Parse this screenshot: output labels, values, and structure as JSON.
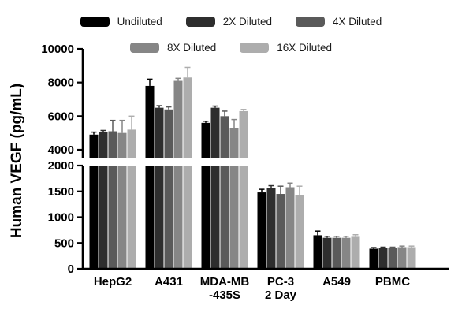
{
  "chart_data": {
    "type": "bar",
    "title": "",
    "xlabel": "",
    "ylabel": "Human VEGF (pg/mL)",
    "grid": false,
    "legend_position": "top",
    "axis_break": true,
    "ylim_lower": [
      0,
      2000
    ],
    "ylim_upper": [
      4000,
      10000
    ],
    "lower_ticks": [
      0,
      500,
      1000,
      1500,
      2000
    ],
    "upper_ticks": [
      4000,
      6000,
      8000,
      10000
    ],
    "categories": [
      "HepG2",
      "A431",
      "MDA-MB\n-435S",
      "PC-3\n2 Day",
      "A549",
      "PBMC"
    ],
    "series": [
      {
        "name": "Undiluted",
        "color": "#000000",
        "values": [
          4900,
          7800,
          5600,
          1480,
          650,
          390
        ],
        "errors": [
          150,
          400,
          100,
          60,
          80,
          20
        ]
      },
      {
        "name": "2X Diluted",
        "color": "#2e2e2e",
        "values": [
          5050,
          6500,
          6500,
          1570,
          600,
          400
        ],
        "errors": [
          100,
          120,
          100,
          40,
          30,
          20
        ]
      },
      {
        "name": "4X Diluted",
        "color": "#5a5a5a",
        "values": [
          5100,
          6400,
          6000,
          1450,
          600,
          400
        ],
        "errors": [
          650,
          150,
          300,
          150,
          30,
          20
        ]
      },
      {
        "name": "8X Diluted",
        "color": "#868686",
        "values": [
          5000,
          8100,
          5300,
          1580,
          600,
          420
        ],
        "errors": [
          750,
          150,
          500,
          80,
          30,
          20
        ]
      },
      {
        "name": "16X Diluted",
        "color": "#adadad",
        "values": [
          5200,
          8300,
          6300,
          1430,
          620,
          420
        ],
        "errors": [
          800,
          600,
          100,
          170,
          40,
          20
        ]
      }
    ]
  }
}
